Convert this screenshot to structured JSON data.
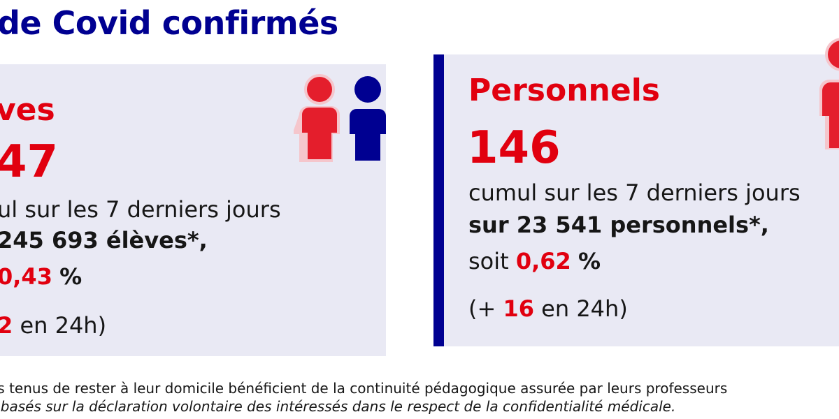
{
  "title": "de Covid confirmés",
  "eleves": {
    "heading": "ves",
    "count": "47",
    "cumul": "ul sur les 7 derniers jours",
    "total": "245 693 élèves*,",
    "soit_value": "0,43",
    "soit_unit": "%",
    "daily_value": "2",
    "daily_suffix": "en 24h)"
  },
  "personnels": {
    "heading": "Personnels",
    "count": "146",
    "cumul": "cumul sur les 7 derniers jours",
    "total": "sur 23 541 personnels*,",
    "soit_prefix": "soit",
    "soit_value": "0,62",
    "soit_unit": "%",
    "daily_prefix": "(+",
    "daily_value": "16",
    "daily_suffix": "en 24h)"
  },
  "footnotes": {
    "line1": "es tenus de rester à leur domicile bénéficient de la continuité pédagogique assurée par leurs professeurs",
    "line2": "s basés sur la déclaration volontaire des intéressés dans le respect de la confidentialité médicale."
  },
  "icons": {
    "students": "students-icon",
    "staff": "staff-person-icon"
  },
  "colors": {
    "blue": "#000091",
    "red": "#e1000f",
    "card_bg": "#e9e9f4"
  }
}
